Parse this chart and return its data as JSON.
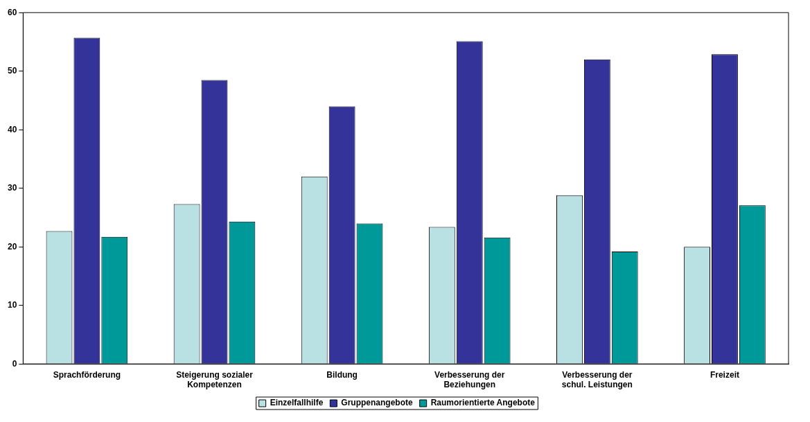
{
  "chart_data": {
    "type": "bar",
    "categories": [
      "Sprachförderung",
      "Steigerung sozialer Kompetenzen",
      "Bildung",
      "Verbesserung der Beziehungen",
      "Verbesserung der schul. Leistungen",
      "Freizeit"
    ],
    "series": [
      {
        "name": "Einzelfallhilfe",
        "color": "#b9e0e3",
        "values": [
          22.7,
          27.3,
          32,
          23.4,
          28.8,
          20
        ]
      },
      {
        "name": "Gruppenangebote",
        "color": "#333399",
        "values": [
          55.7,
          48.5,
          44,
          55.1,
          52,
          52.9
        ]
      },
      {
        "name": "Raumorientierte Angebote",
        "color": "#009999",
        "values": [
          21.7,
          24.3,
          24,
          21.6,
          19.2,
          27.1
        ]
      }
    ],
    "ylim": [
      0,
      60
    ],
    "yticks": [
      0,
      10,
      20,
      30,
      40,
      50,
      60
    ],
    "grid": false,
    "legend": "bottom"
  }
}
